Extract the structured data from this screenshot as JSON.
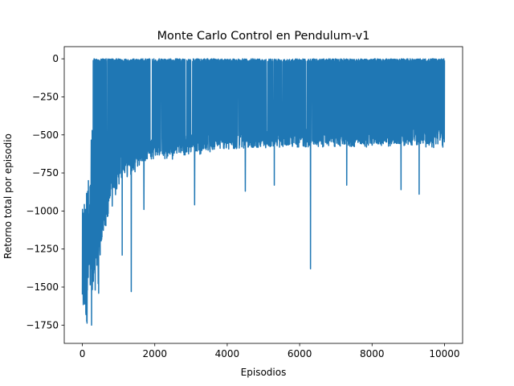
{
  "chart_data": {
    "type": "line",
    "title": "Monte Carlo Control en Pendulum-v1",
    "xlabel": "Episodios",
    "ylabel": "Retorno total por episodio",
    "xlim": [
      -500,
      10500
    ],
    "ylim": [
      -1870,
      80
    ],
    "xticks": [
      0,
      2000,
      4000,
      6000,
      8000,
      10000
    ],
    "xtick_labels": [
      "0",
      "2000",
      "4000",
      "6000",
      "8000",
      "10000"
    ],
    "yticks": [
      0,
      -250,
      -500,
      -750,
      -1000,
      -1250,
      -1500,
      -1750
    ],
    "ytick_labels": [
      "0",
      "−250",
      "−500",
      "−750",
      "−1000",
      "−1250",
      "−1500",
      "−1750"
    ],
    "grid": false,
    "legend": "none",
    "series": [
      {
        "color": "#1f77b4",
        "episodes": 10000,
        "upper_envelope": [
          [
            0,
            -1000
          ],
          [
            50,
            -830
          ],
          [
            100,
            -900
          ],
          [
            150,
            -700
          ],
          [
            200,
            -870
          ],
          [
            250,
            -500
          ],
          [
            280,
            -300
          ],
          [
            300,
            0
          ],
          [
            10000,
            0
          ]
        ],
        "lower_envelope": [
          [
            0,
            -1790
          ],
          [
            100,
            -1760
          ],
          [
            200,
            -1700
          ],
          [
            250,
            -1770
          ],
          [
            300,
            -1620
          ],
          [
            400,
            -1580
          ],
          [
            500,
            -1520
          ],
          [
            600,
            -1300
          ],
          [
            700,
            -1130
          ],
          [
            800,
            -1000
          ],
          [
            1000,
            -850
          ],
          [
            1200,
            -780
          ],
          [
            1400,
            -760
          ],
          [
            1600,
            -700
          ],
          [
            2000,
            -660
          ],
          [
            2500,
            -660
          ],
          [
            3000,
            -640
          ],
          [
            4000,
            -600
          ],
          [
            5000,
            -580
          ],
          [
            6000,
            -560
          ],
          [
            7000,
            -560
          ],
          [
            8000,
            -560
          ],
          [
            9000,
            -560
          ],
          [
            10000,
            -600
          ]
        ],
        "baseline_envelope": [
          [
            0,
            -1600
          ],
          [
            300,
            -1400
          ],
          [
            500,
            -1200
          ],
          [
            700,
            -900
          ],
          [
            1000,
            -700
          ],
          [
            1500,
            -620
          ],
          [
            2000,
            -580
          ],
          [
            3000,
            -550
          ],
          [
            4000,
            -530
          ],
          [
            6000,
            -520
          ],
          [
            8000,
            -520
          ],
          [
            10000,
            -500
          ]
        ],
        "spikes": [
          [
            1100,
            -1290
          ],
          [
            1350,
            -1530
          ],
          [
            1700,
            -990
          ],
          [
            3100,
            -960
          ],
          [
            4500,
            -870
          ],
          [
            5300,
            -830
          ],
          [
            6300,
            -1380
          ],
          [
            7300,
            -830
          ],
          [
            8800,
            -860
          ],
          [
            9300,
            -890
          ]
        ]
      }
    ]
  }
}
